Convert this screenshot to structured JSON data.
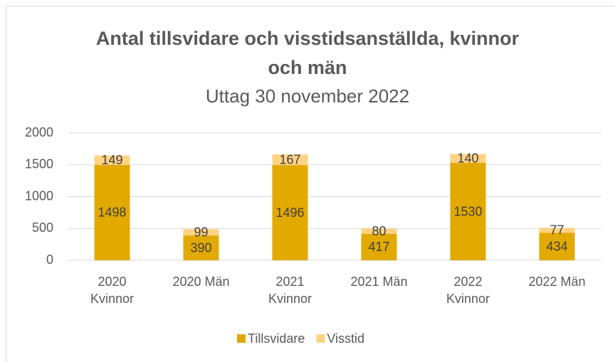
{
  "chart_data": {
    "type": "stacked_bar",
    "title": "Antal tillsvidare och visstidsanställda, kvinnor och män",
    "subtitle": "Uttag 30 november 2022",
    "categories": [
      "2020 Kvinnor",
      "2020 Män",
      "2021 Kvinnor",
      "2021 Män",
      "2022 Kvinnor",
      "2022 Män"
    ],
    "series": [
      {
        "name": "Tillsvidare",
        "color": "#e2a900",
        "values": [
          1498,
          390,
          1496,
          417,
          1530,
          434
        ]
      },
      {
        "name": "Visstid",
        "color": "#ffd383",
        "values": [
          149,
          99,
          167,
          80,
          140,
          77
        ]
      }
    ],
    "ylim": [
      0,
      2000
    ],
    "yticks": [
      0,
      500,
      1000,
      1500,
      2000
    ],
    "grid": true,
    "legend": "bottom"
  }
}
